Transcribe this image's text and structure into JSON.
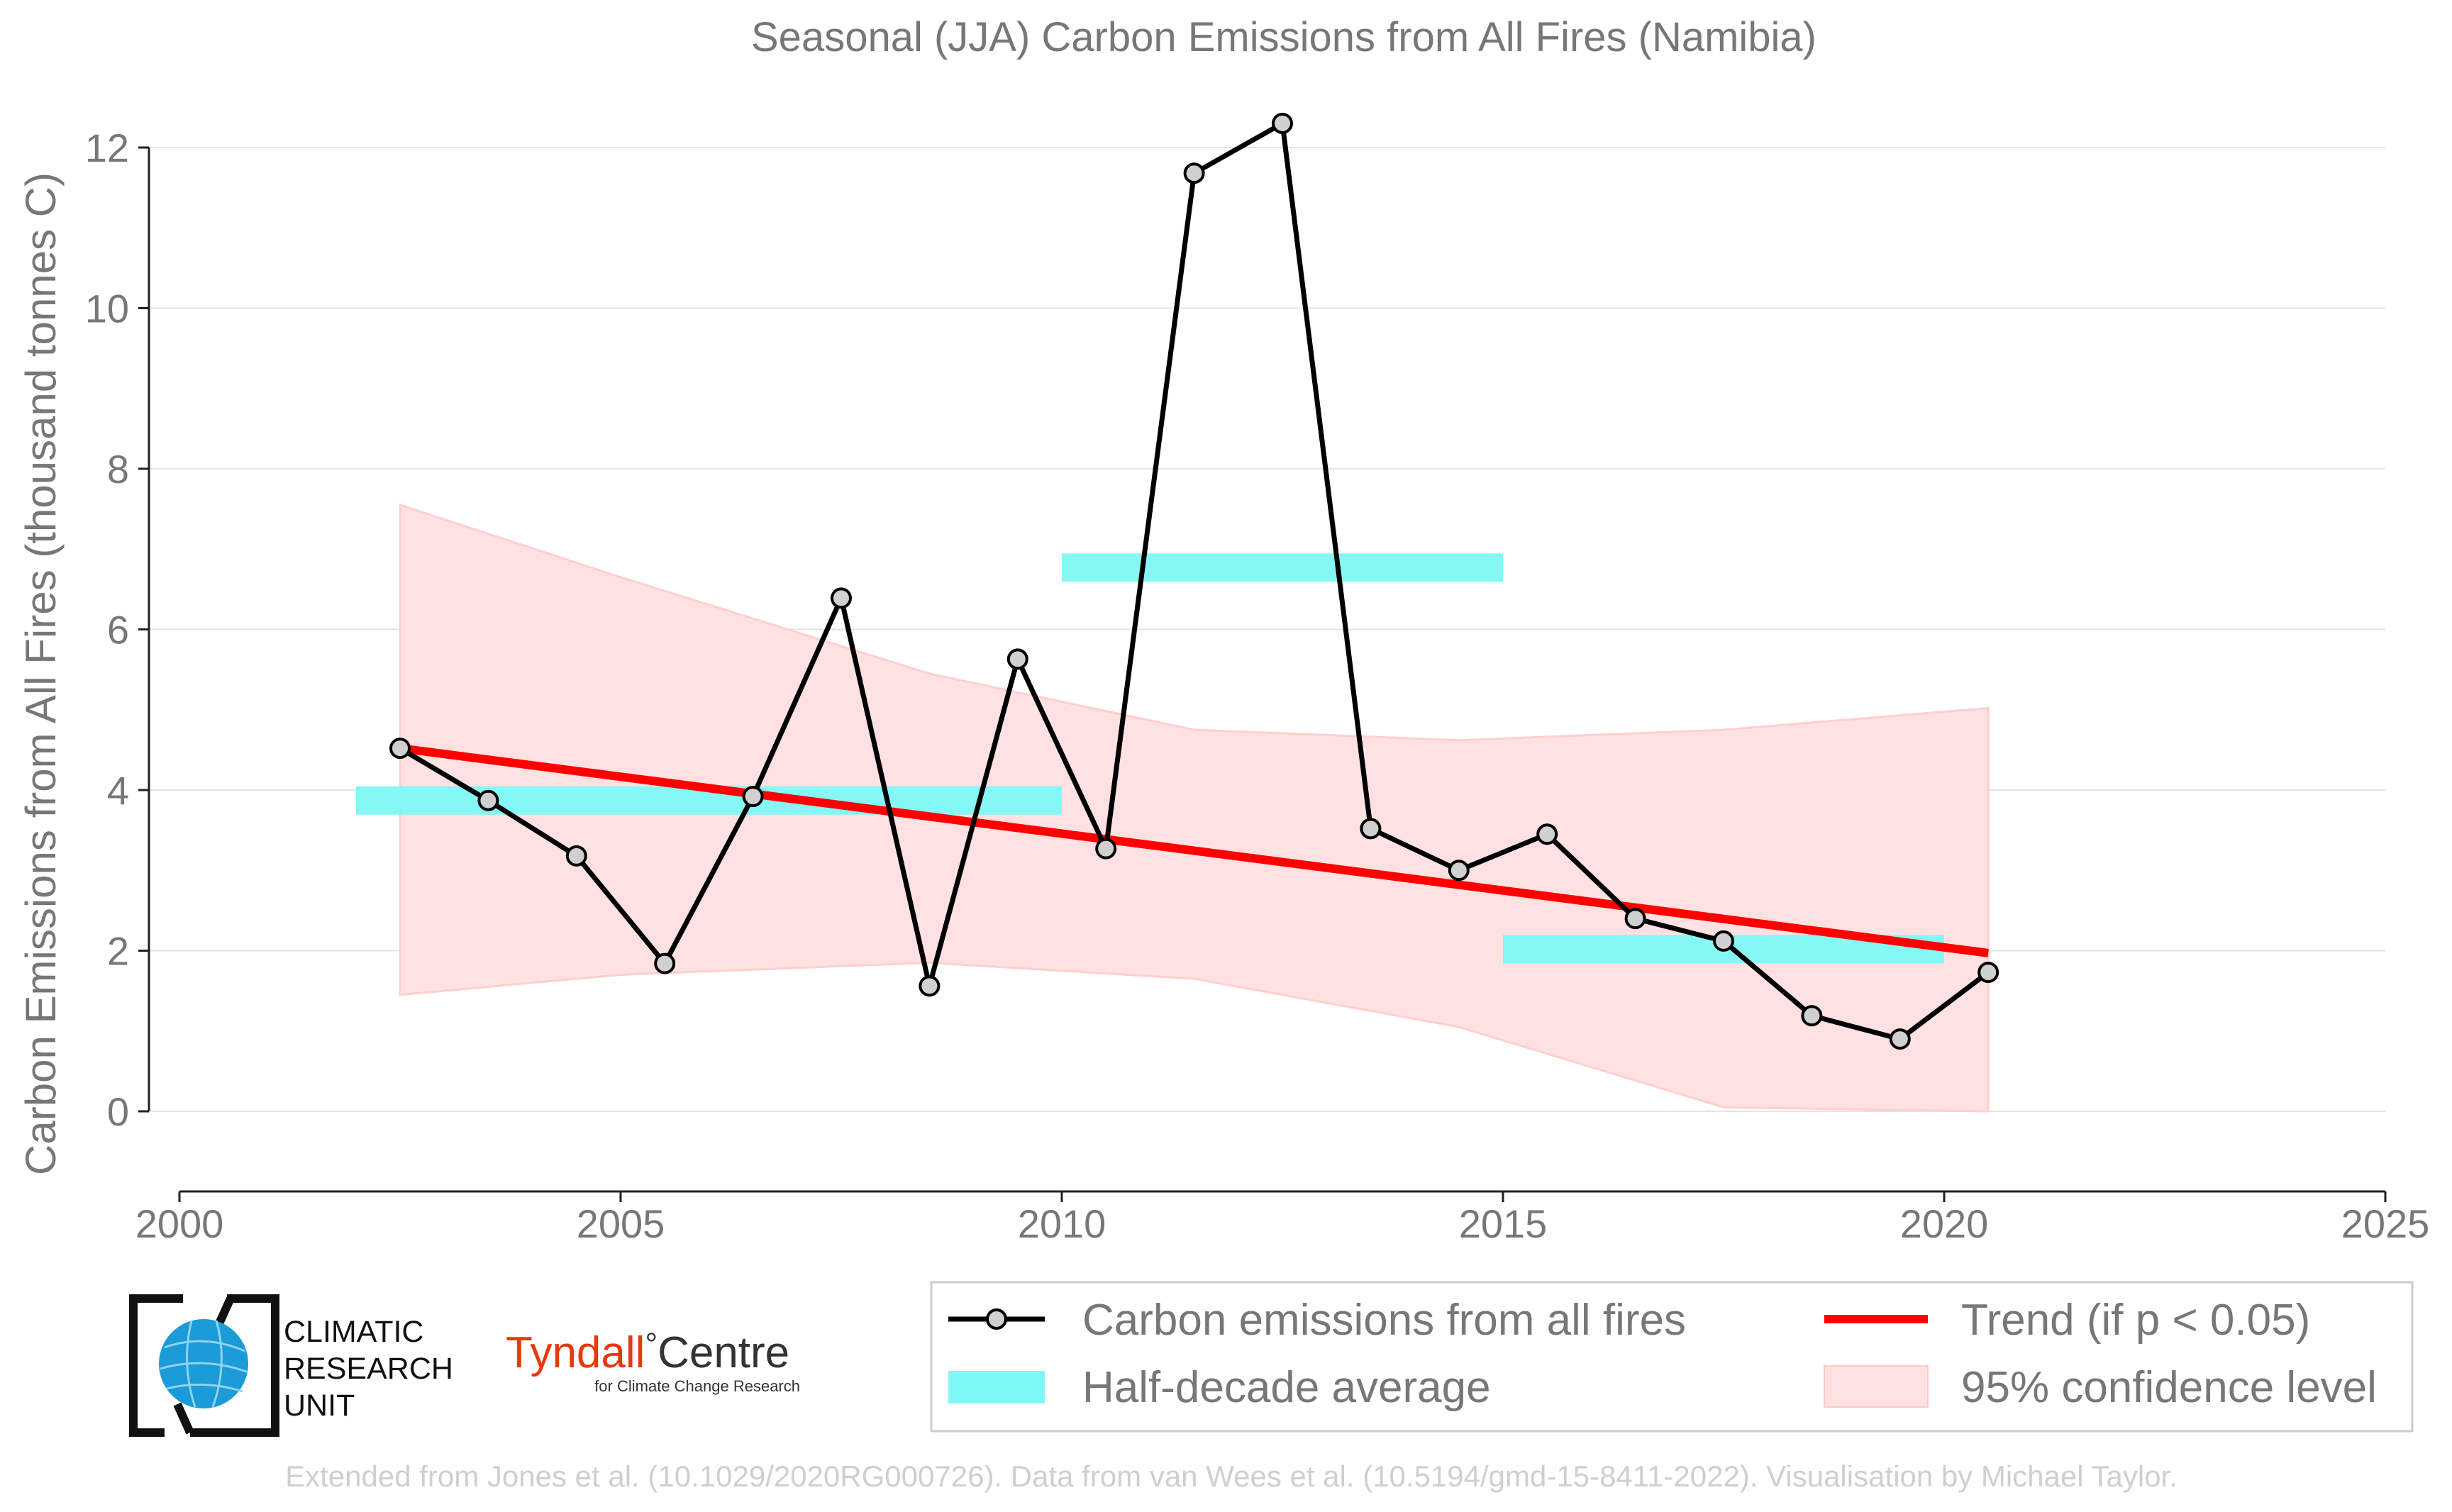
{
  "chart_data": {
    "type": "line",
    "title": "Seasonal (JJA) Carbon Emissions from All Fires (Namibia)",
    "xlabel": "",
    "ylabel": "Carbon Emissions from All Fires (thousand tonnes C)",
    "xlim": [
      2000,
      2025
    ],
    "ylim": [
      -1,
      12.4
    ],
    "x_ticks": [
      "2000",
      "2005",
      "2010",
      "2015",
      "2020",
      "2025"
    ],
    "y_ticks": [
      "0",
      "2",
      "4",
      "6",
      "8",
      "10",
      "12"
    ],
    "grid": "horizontal",
    "legend_placement": "bottom-right",
    "series": [
      {
        "name": "Carbon emissions from all fires",
        "color": "#000000",
        "x": [
          2002.5,
          2003.5,
          2004.5,
          2005.5,
          2006.5,
          2007.5,
          2008.5,
          2009.5,
          2010.5,
          2011.5,
          2012.5,
          2013.5,
          2014.5,
          2015.5,
          2016.5,
          2017.5,
          2018.5,
          2019.5,
          2020.5
        ],
        "values": [
          4.52,
          3.87,
          3.18,
          1.84,
          3.92,
          6.39,
          1.56,
          5.63,
          3.27,
          11.68,
          12.3,
          3.52,
          3.0,
          3.45,
          2.4,
          2.12,
          1.19,
          0.9,
          1.73
        ]
      },
      {
        "name": "Half-decade average",
        "color": "#7ef8f4",
        "segments": [
          {
            "x_start": 2002.0,
            "x_end": 2005.0,
            "value": 3.87
          },
          {
            "x_start": 2005.0,
            "x_end": 2010.0,
            "value": 3.87
          },
          {
            "x_start": 2010.0,
            "x_end": 2015.0,
            "value": 6.77
          },
          {
            "x_start": 2015.0,
            "x_end": 2020.0,
            "value": 2.02
          }
        ]
      },
      {
        "name": "Trend (if p < 0.05)",
        "color": "#ff0000",
        "x": [
          2002.5,
          2020.5
        ],
        "values": [
          4.52,
          1.97
        ]
      },
      {
        "name": "95% confidence level",
        "color": "#ffd6d6",
        "x": [
          2002.5,
          2005.0,
          2008.5,
          2011.5,
          2014.5,
          2017.5,
          2020.5
        ],
        "upper": [
          7.55,
          6.65,
          5.45,
          4.75,
          4.62,
          4.75,
          5.02
        ],
        "lower": [
          1.45,
          1.7,
          1.85,
          1.65,
          1.05,
          0.05,
          0.0
        ]
      }
    ]
  },
  "legend": {
    "items": [
      "Carbon emissions from all fires",
      "Trend (if p < 0.05)",
      "Half-decade average",
      "95% confidence level"
    ]
  },
  "logos": {
    "cru_line1": "CLIMATIC",
    "cru_line2": "RESEARCH",
    "cru_line3": "UNIT",
    "tyndall_name": "Tyndall",
    "tyndall_degree": "°",
    "tyndall_centre": "Centre",
    "tyndall_sub": "for Climate Change Research"
  },
  "footer": "Extended from Jones et al. (10.1029/2020RG000726). Data from van Wees et al. (10.5194/gmd-15-8411-2022). Visualisation by Michael Taylor."
}
